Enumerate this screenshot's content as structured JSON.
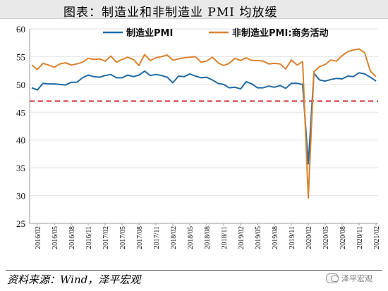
{
  "title": "图表：制造业和非制造业 PMI 均放缓",
  "source": "资料来源：Wind，泽平宏观",
  "watermark": "泽平宏观",
  "colors": {
    "manufacturing": "#1f6aa5",
    "non_manufacturing": "#d9832f",
    "reference": "#d32b2b",
    "grid": "#e2e2e2"
  },
  "chart_data": {
    "type": "line",
    "title": "",
    "xlabel": "",
    "ylabel": "",
    "ylim": [
      25,
      60
    ],
    "yticks": [
      25,
      30,
      35,
      40,
      45,
      50,
      55,
      60
    ],
    "grid": "horizontal",
    "legend": "top-right",
    "reference_line": {
      "y": 47,
      "style": "dashed"
    },
    "x": [
      "2016/01",
      "2016/02",
      "2016/03",
      "2016/04",
      "2016/05",
      "2016/06",
      "2016/07",
      "2016/08",
      "2016/09",
      "2016/10",
      "2016/11",
      "2016/12",
      "2017/01",
      "2017/02",
      "2017/03",
      "2017/04",
      "2017/05",
      "2017/06",
      "2017/07",
      "2017/08",
      "2017/09",
      "2017/10",
      "2017/11",
      "2017/12",
      "2018/01",
      "2018/02",
      "2018/03",
      "2018/04",
      "2018/05",
      "2018/06",
      "2018/07",
      "2018/08",
      "2018/09",
      "2018/10",
      "2018/11",
      "2018/12",
      "2019/01",
      "2019/02",
      "2019/03",
      "2019/04",
      "2019/05",
      "2019/06",
      "2019/07",
      "2019/08",
      "2019/09",
      "2019/10",
      "2019/11",
      "2019/12",
      "2020/01",
      "2020/02",
      "2020/03",
      "2020/04",
      "2020/05",
      "2020/06",
      "2020/07",
      "2020/08",
      "2020/09",
      "2020/10",
      "2020/11",
      "2020/12",
      "2021/01",
      "2021/02"
    ],
    "xtick_labels": [
      "2016/02",
      "2016/05",
      "2016/08",
      "2016/11",
      "2017/02",
      "2017/05",
      "2017/08",
      "2017/11",
      "2018/02",
      "2018/05",
      "2018/08",
      "2018/11",
      "2019/02",
      "2019/05",
      "2019/08",
      "2019/11",
      "2020/02",
      "2020/05",
      "2020/08",
      "2020/11",
      "2021/02"
    ],
    "series": [
      {
        "name": "制造业PMI",
        "values": [
          49.4,
          49.0,
          50.2,
          50.1,
          50.1,
          50.0,
          49.9,
          50.4,
          50.4,
          51.2,
          51.7,
          51.4,
          51.3,
          51.6,
          51.8,
          51.2,
          51.2,
          51.7,
          51.4,
          51.7,
          52.4,
          51.6,
          51.8,
          51.6,
          51.3,
          50.3,
          51.5,
          51.4,
          51.9,
          51.5,
          51.2,
          51.3,
          50.8,
          50.2,
          50.0,
          49.4,
          49.5,
          49.2,
          50.5,
          50.1,
          49.4,
          49.4,
          49.7,
          49.5,
          49.8,
          49.3,
          50.2,
          50.2,
          50.0,
          35.7,
          52.0,
          50.8,
          50.6,
          50.9,
          51.1,
          51.0,
          51.5,
          51.4,
          52.1,
          51.9,
          51.3,
          50.6
        ]
      },
      {
        "name": "非制造业PMI:商务活动",
        "values": [
          53.5,
          52.7,
          53.8,
          53.5,
          53.1,
          53.7,
          53.9,
          53.5,
          53.7,
          54.0,
          54.7,
          54.5,
          54.6,
          54.2,
          55.1,
          54.0,
          54.5,
          54.9,
          54.5,
          53.4,
          55.4,
          54.3,
          54.8,
          55.0,
          55.3,
          54.4,
          54.6,
          54.8,
          54.9,
          55.0,
          54.0,
          54.2,
          54.9,
          53.9,
          53.4,
          53.8,
          54.7,
          54.3,
          54.8,
          54.3,
          54.3,
          54.2,
          53.7,
          53.8,
          53.7,
          52.8,
          54.4,
          53.5,
          54.1,
          29.6,
          52.3,
          53.2,
          53.6,
          54.4,
          54.2,
          55.2,
          55.9,
          56.2,
          56.4,
          55.7,
          52.4,
          51.4
        ]
      }
    ]
  }
}
